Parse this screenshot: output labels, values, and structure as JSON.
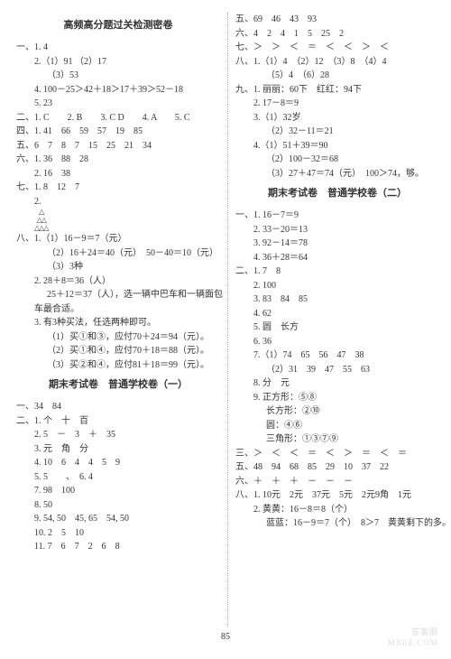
{
  "page_number": "85",
  "watermark1": "答案圈",
  "watermark2": "MXEE.COM",
  "left": {
    "title1": "高频高分题过关检测密卷",
    "lines": [
      "一、1. 4",
      "   2.（1）91 （2）17",
      "    （3）53",
      "   4. 100－25＞42＋18＞17＋39＞52－18",
      "   5. 23",
      "二、1. C　　2. B　　3. C  D　　4. A　　5. C",
      "四、1. 41　66　59　57　19　85",
      "五、6　7　8　7　15　25　21　34",
      "六、1. 36　88　28",
      "   2. 16　38",
      "七、1. 8　12　7",
      "   2.",
      "TRIANGLE",
      "八、1.（1）16－9＝7（元）",
      "    （2）16＋24＝40（元）　50－40＝10（元）",
      "    （3）3种",
      "   2. 28＋8＝36（人）",
      "     25＋12＝37（人），选一辆中巴车和一辆面包",
      "   车最合适。",
      "   3. 有3种买法，任选两种即可。",
      "    （1）买①和③，应付70＋24＝94（元）。",
      "    （2）买①和④，应付70＋18＝88（元）。",
      "    （3）买②和④，应付81＋18＝99（元）。"
    ],
    "title2": "期末考试卷　普通学校卷（一）",
    "lines2": [
      "一、34　84",
      "二、1. 个　十　百",
      "   2. 5　－　3　＋　35",
      "   3. 元　角　分",
      "   4. 10　6　4　4　5　9",
      "   5. 5　　、　6. 4",
      "   7. 98　100",
      "   8. 50",
      "   9. 54, 50　45, 65　54, 50",
      "   10. 2　5　10",
      "   11. 7　6　7　2　6　8"
    ]
  },
  "right": {
    "lines": [
      "五、69　46　43　93",
      "六、4　2　4　1　5　25　2",
      "七、＞　＞　＜　＝　＜　＜　＞　＜",
      "八、1.（1）4　（2）12　（3）8　（4）4",
      "    （5）4　（6）28",
      "九、1. 丽丽：60下　红红：94下",
      "   2. 17－8＝9",
      "   3.（1）32岁",
      "    （2）32－11＝21",
      "   4.（1）51＋39＝90",
      "    （2）100－32＝68",
      "    （3）27＋47＝74（元）　100＞74，够。"
    ],
    "title1": "期末考试卷　普通学校卷（二）",
    "lines2": [
      "一、1. 16－7＝9",
      "   2. 33－20＝13",
      "   3. 92－14＝78",
      "   4. 36＋28＝64",
      "二、1. 7　8",
      "   2. 100",
      "   3. 83　84　85",
      "   4. 62",
      "   5. 圆　长方",
      "   6. 36",
      "   7.（1）74　65　56　47　38",
      "    （2）31　39　47　55　63",
      "   8. 分　元",
      "   9. 正方形：⑤⑧",
      "      长方形：②⑩",
      "      圆：④⑥",
      "      三角形：①③⑦⑨",
      "三、＞　＜　＜　＝　＜　＞　＝　＜　＝",
      "五、48　94　68　85　29　10　37　22",
      "六、＋　＋　＋　－　－　－",
      "八、1. 10元　2元　37元　5元　2元9角　1元",
      "   2. 黄黄：16－8＝8（个）",
      "      蓝蓝：16－9＝7（个）　8＞7　黄黄剩下的多。"
    ]
  }
}
